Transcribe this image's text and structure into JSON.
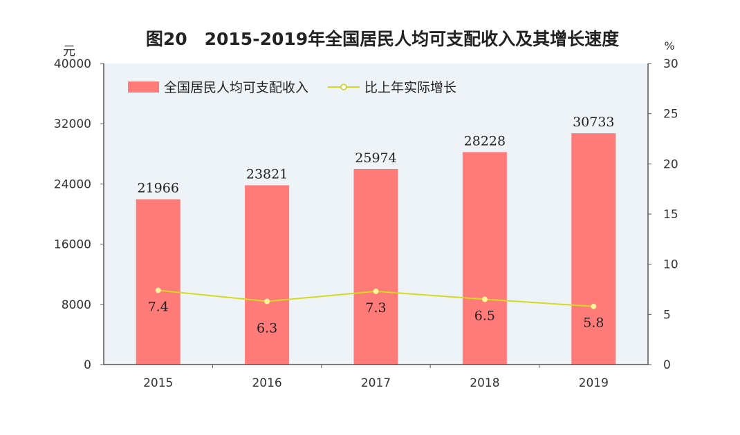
{
  "chart_data": {
    "type": "bar+line",
    "title": "图20　2015-2019年全国居民人均可支配收入及其增长速度",
    "categories": [
      "2015",
      "2016",
      "2017",
      "2018",
      "2019"
    ],
    "series": [
      {
        "name": "全国居民人均可支配收入",
        "type": "bar",
        "axis": "left",
        "values": [
          21966,
          23821,
          25974,
          28228,
          30733
        ],
        "color": "#FF7B79"
      },
      {
        "name": "比上年实际增长",
        "type": "line",
        "axis": "right",
        "values": [
          7.4,
          6.3,
          7.3,
          6.5,
          5.8
        ],
        "color": "#D4DA1E"
      }
    ],
    "y_left": {
      "unit": "元",
      "ylim": [
        0,
        40000
      ],
      "ticks": [
        "0",
        "8000",
        "16000",
        "24000",
        "32000",
        "40000"
      ]
    },
    "y_right": {
      "unit": "%",
      "ylim": [
        0,
        30
      ],
      "ticks": [
        "0",
        "5",
        "10",
        "15",
        "20",
        "25",
        "30"
      ]
    },
    "legend": "top-left",
    "grid": false,
    "plot_background": "#EEF3F8"
  }
}
